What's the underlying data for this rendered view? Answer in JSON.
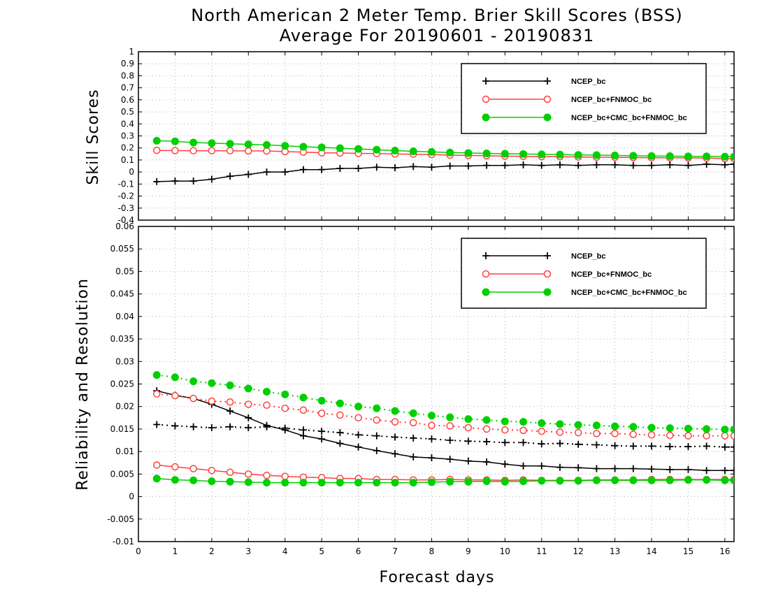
{
  "title_line1": "North American 2 Meter Temp. Brier Skill Scores (BSS)",
  "title_line2": "Average For 20190601 - 20190831",
  "chart_data": [
    {
      "type": "line",
      "ylabel": "Skill Scores",
      "xlabel": "Forecast days",
      "xlim": [
        0,
        16.25
      ],
      "ylim": [
        -0.4,
        1
      ],
      "yticks": [
        "-0.4",
        "-0.3",
        "-0.2",
        "-0.1",
        "0",
        "0.1",
        "0.2",
        "0.3",
        "0.4",
        "0.5",
        "0.6",
        "0.7",
        "0.8",
        "0.9",
        "1"
      ],
      "grid": true,
      "legend_position": "top-right",
      "x": [
        0.5,
        1,
        1.5,
        2,
        2.5,
        3,
        3.5,
        4,
        4.5,
        5,
        5.5,
        6,
        6.5,
        7,
        7.5,
        8,
        8.5,
        9,
        9.5,
        10,
        10.5,
        11,
        11.5,
        12,
        12.5,
        13,
        13.5,
        14,
        14.5,
        15,
        15.5,
        16,
        16.25
      ],
      "series": [
        {
          "name": "NCEP_bc",
          "color": "#000000",
          "marker": "plus",
          "style": "solid",
          "values": [
            -0.08,
            -0.075,
            -0.075,
            -0.06,
            -0.035,
            -0.02,
            0.0,
            0.0,
            0.02,
            0.02,
            0.03,
            0.03,
            0.04,
            0.035,
            0.045,
            0.04,
            0.05,
            0.05,
            0.055,
            0.055,
            0.06,
            0.055,
            0.06,
            0.055,
            0.06,
            0.06,
            0.055,
            0.055,
            0.06,
            0.055,
            0.065,
            0.06,
            0.065
          ]
        },
        {
          "name": "NCEP_bc+FNMOC_bc",
          "color": "#ff4040",
          "marker": "circle-open",
          "style": "solid",
          "values": [
            0.18,
            0.178,
            0.177,
            0.177,
            0.177,
            0.175,
            0.175,
            0.17,
            0.165,
            0.16,
            0.158,
            0.155,
            0.153,
            0.15,
            0.148,
            0.145,
            0.14,
            0.138,
            0.135,
            0.132,
            0.13,
            0.128,
            0.127,
            0.125,
            0.123,
            0.122,
            0.12,
            0.118,
            0.118,
            0.117,
            0.115,
            0.112,
            0.112
          ]
        },
        {
          "name": "NCEP_bc+CMC_bc+FNMOC_bc",
          "color": "#00d000",
          "marker": "circle-filled",
          "style": "solid",
          "values": [
            0.26,
            0.255,
            0.245,
            0.24,
            0.235,
            0.23,
            0.225,
            0.218,
            0.21,
            0.205,
            0.198,
            0.192,
            0.185,
            0.178,
            0.172,
            0.167,
            0.162,
            0.158,
            0.155,
            0.152,
            0.15,
            0.147,
            0.145,
            0.142,
            0.14,
            0.138,
            0.135,
            0.133,
            0.132,
            0.13,
            0.13,
            0.128,
            0.128
          ]
        }
      ]
    },
    {
      "type": "line",
      "ylabel": "Reliability and Resolution",
      "xlabel": "Forecast days",
      "xlim": [
        0,
        16.25
      ],
      "ylim": [
        -0.01,
        0.06
      ],
      "yticks": [
        "-0.01",
        "-0.005",
        "0",
        "0.005",
        "0.01",
        "0.015",
        "0.02",
        "0.025",
        "0.03",
        "0.035",
        "0.04",
        "0.045",
        "0.05",
        "0.055",
        "0.06"
      ],
      "xticks": [
        "0",
        "1",
        "2",
        "3",
        "4",
        "5",
        "6",
        "7",
        "8",
        "9",
        "10",
        "11",
        "12",
        "13",
        "14",
        "15",
        "16"
      ],
      "grid": true,
      "legend_position": "top-right",
      "x": [
        0.5,
        1,
        1.5,
        2,
        2.5,
        3,
        3.5,
        4,
        4.5,
        5,
        5.5,
        6,
        6.5,
        7,
        7.5,
        8,
        8.5,
        9,
        9.5,
        10,
        10.5,
        11,
        11.5,
        12,
        12.5,
        13,
        13.5,
        14,
        14.5,
        15,
        15.5,
        16,
        16.25
      ],
      "series": [
        {
          "name": "NCEP_bc",
          "color": "#000000",
          "marker": "plus",
          "style": "solid",
          "legend": true,
          "values": [
            0.0235,
            0.0225,
            0.0218,
            0.0205,
            0.019,
            0.0175,
            0.0158,
            0.0148,
            0.0135,
            0.0128,
            0.0118,
            0.011,
            0.0102,
            0.0095,
            0.0088,
            0.0086,
            0.0083,
            0.0079,
            0.0077,
            0.0072,
            0.0068,
            0.0068,
            0.0065,
            0.0064,
            0.0062,
            0.0062,
            0.0062,
            0.0061,
            0.006,
            0.006,
            0.0058,
            0.0058,
            0.0058
          ]
        },
        {
          "name": "NCEP_bc+FNMOC_bc",
          "color": "#ff4040",
          "marker": "circle-open",
          "style": "solid",
          "legend": true,
          "values": [
            0.007,
            0.0066,
            0.0062,
            0.0058,
            0.0054,
            0.005,
            0.0047,
            0.0045,
            0.0043,
            0.0042,
            0.004,
            0.004,
            0.0038,
            0.0038,
            0.0037,
            0.0037,
            0.0038,
            0.0037,
            0.0037,
            0.0036,
            0.0037,
            0.0036,
            0.0036,
            0.0036,
            0.0037,
            0.0037,
            0.0037,
            0.0038,
            0.0038,
            0.0038,
            0.0038,
            0.0038,
            0.0038
          ]
        },
        {
          "name": "NCEP_bc+CMC_bc+FNMOC_bc",
          "color": "#00d000",
          "marker": "circle-filled",
          "style": "solid",
          "legend": true,
          "values": [
            0.004,
            0.0037,
            0.0036,
            0.0034,
            0.0033,
            0.0032,
            0.0031,
            0.0031,
            0.0031,
            0.0031,
            0.0031,
            0.0031,
            0.0031,
            0.0031,
            0.0031,
            0.0032,
            0.0033,
            0.0033,
            0.0034,
            0.0033,
            0.0034,
            0.0035,
            0.0035,
            0.0035,
            0.0036,
            0.0036,
            0.0036,
            0.0036,
            0.0036,
            0.0037,
            0.0037,
            0.0036,
            0.0036
          ]
        },
        {
          "color": "#000000",
          "marker": "plus",
          "style": "dotted",
          "legend": false,
          "values": [
            0.016,
            0.0157,
            0.0155,
            0.0153,
            0.0155,
            0.0153,
            0.0155,
            0.0152,
            0.0148,
            0.0145,
            0.0142,
            0.0137,
            0.0135,
            0.0132,
            0.013,
            0.0128,
            0.0125,
            0.0123,
            0.0122,
            0.012,
            0.012,
            0.0117,
            0.0118,
            0.0116,
            0.0115,
            0.0113,
            0.0112,
            0.0112,
            0.0111,
            0.0111,
            0.0112,
            0.011,
            0.011
          ]
        },
        {
          "color": "#ff4040",
          "marker": "circle-open",
          "style": "dotted",
          "legend": false,
          "values": [
            0.0228,
            0.0224,
            0.0218,
            0.0212,
            0.021,
            0.0205,
            0.0203,
            0.0196,
            0.0192,
            0.0185,
            0.0181,
            0.0175,
            0.017,
            0.0166,
            0.0164,
            0.0158,
            0.0157,
            0.0153,
            0.015,
            0.0148,
            0.0147,
            0.0145,
            0.0143,
            0.0142,
            0.014,
            0.014,
            0.0138,
            0.0137,
            0.0136,
            0.0135,
            0.0135,
            0.0135,
            0.0135
          ]
        },
        {
          "color": "#00d000",
          "marker": "circle-filled",
          "style": "dotted",
          "legend": false,
          "values": [
            0.027,
            0.0265,
            0.0256,
            0.0252,
            0.0247,
            0.024,
            0.0233,
            0.0227,
            0.022,
            0.0213,
            0.0207,
            0.02,
            0.0196,
            0.019,
            0.0185,
            0.018,
            0.0176,
            0.0172,
            0.017,
            0.0167,
            0.0166,
            0.0163,
            0.0161,
            0.0159,
            0.0158,
            0.0156,
            0.0155,
            0.0153,
            0.0152,
            0.0151,
            0.015,
            0.0149,
            0.0149
          ]
        }
      ]
    }
  ]
}
